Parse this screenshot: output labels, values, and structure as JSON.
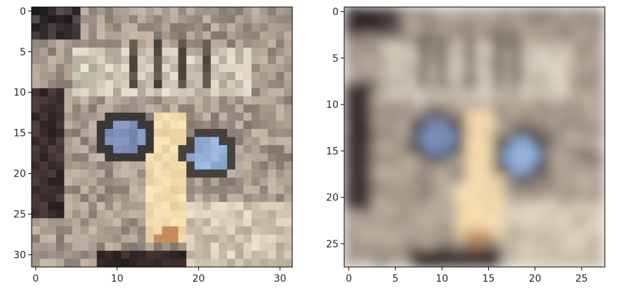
{
  "chart_data": [
    {
      "type": "heatmap",
      "title": "",
      "xlabel": "",
      "ylabel": "",
      "shape": [
        32,
        32
      ],
      "xlim": [
        -0.5,
        31.5
      ],
      "ylim": [
        31.5,
        -0.5
      ],
      "xticks": [
        0,
        10,
        20,
        30
      ],
      "xtick_labels": [
        "0",
        "10",
        "20",
        "30"
      ],
      "yticks": [
        0,
        5,
        10,
        15,
        20,
        25,
        30
      ],
      "ytick_labels": [
        "0",
        "5",
        "10",
        "15",
        "20",
        "25",
        "30"
      ],
      "content": "pixelated image of a cat face with blue eyes (sharp)",
      "grid": false
    },
    {
      "type": "heatmap",
      "title": "",
      "xlabel": "",
      "ylabel": "",
      "shape": [
        28,
        28
      ],
      "xlim": [
        -0.5,
        27.5
      ],
      "ylim": [
        27.5,
        -0.5
      ],
      "xticks": [
        0,
        5,
        10,
        15,
        20,
        25
      ],
      "xtick_labels": [
        "0",
        "5",
        "10",
        "15",
        "20",
        "25"
      ],
      "yticks": [
        0,
        5,
        10,
        15,
        20,
        25
      ],
      "ytick_labels": [
        "0",
        "5",
        "10",
        "15",
        "20",
        "25"
      ],
      "content": "blurred version of the cat face image",
      "grid": false
    }
  ]
}
